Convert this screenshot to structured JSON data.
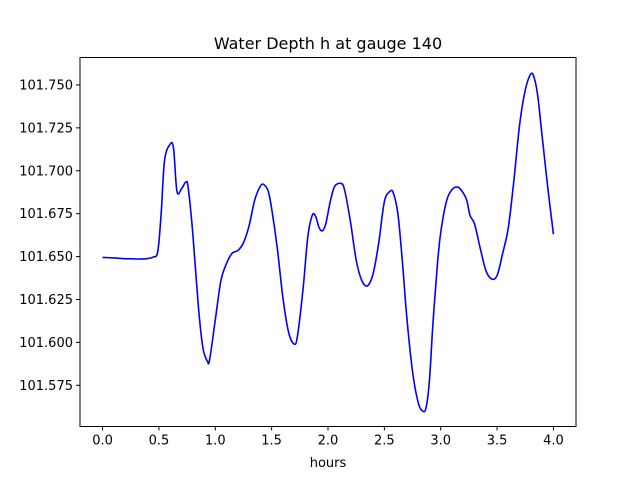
{
  "chart_data": {
    "type": "line",
    "title": "Water Depth h at gauge 140",
    "xlabel": "hours",
    "ylabel": "",
    "xlim": [
      -0.2,
      4.2
    ],
    "ylim": [
      101.551,
      101.766
    ],
    "xticks": [
      0.0,
      0.5,
      1.0,
      1.5,
      2.0,
      2.5,
      3.0,
      3.5,
      4.0
    ],
    "xtick_labels": [
      "0.0",
      "0.5",
      "1.0",
      "1.5",
      "2.0",
      "2.5",
      "3.0",
      "3.5",
      "4.0"
    ],
    "yticks": [
      101.575,
      101.6,
      101.625,
      101.65,
      101.675,
      101.7,
      101.725,
      101.75
    ],
    "ytick_labels": [
      "101.575",
      "101.600",
      "101.625",
      "101.650",
      "101.675",
      "101.700",
      "101.725",
      "101.750"
    ],
    "grid": false,
    "series": [
      {
        "color": "#0000ff",
        "x": [
          0.0,
          0.1,
          0.2,
          0.3,
          0.38,
          0.45,
          0.49,
          0.52,
          0.55,
          0.6,
          0.63,
          0.66,
          0.7,
          0.74,
          0.76,
          0.8,
          0.85,
          0.89,
          0.93,
          0.95,
          1.0,
          1.05,
          1.1,
          1.15,
          1.2,
          1.25,
          1.3,
          1.35,
          1.4,
          1.43,
          1.47,
          1.5,
          1.55,
          1.6,
          1.65,
          1.7,
          1.73,
          1.78,
          1.82,
          1.86,
          1.89,
          1.92,
          1.95,
          1.98,
          2.02,
          2.06,
          2.12,
          2.15,
          2.2,
          2.25,
          2.3,
          2.35,
          2.4,
          2.45,
          2.5,
          2.55,
          2.58,
          2.62,
          2.66,
          2.7,
          2.75,
          2.8,
          2.84,
          2.87,
          2.9,
          2.93,
          2.97,
          3.0,
          3.05,
          3.1,
          3.15,
          3.19,
          3.23,
          3.26,
          3.3,
          3.35,
          3.4,
          3.45,
          3.5,
          3.55,
          3.6,
          3.65,
          3.7,
          3.75,
          3.8,
          3.83,
          3.86,
          3.9,
          3.95,
          4.0
        ],
        "y": [
          101.6495,
          101.6492,
          101.6488,
          101.6486,
          101.6487,
          101.6497,
          101.653,
          101.675,
          101.706,
          101.7155,
          101.713,
          101.688,
          101.6895,
          101.6935,
          101.69,
          101.664,
          101.621,
          101.597,
          101.589,
          101.59,
          101.613,
          101.636,
          101.646,
          101.652,
          101.6535,
          101.658,
          101.668,
          101.683,
          101.691,
          101.692,
          101.688,
          101.678,
          101.655,
          101.626,
          101.606,
          101.599,
          101.604,
          101.632,
          101.661,
          101.674,
          101.6735,
          101.667,
          101.665,
          101.669,
          101.682,
          101.691,
          101.6925,
          101.688,
          101.67,
          101.648,
          101.636,
          101.633,
          101.64,
          101.658,
          101.682,
          101.688,
          101.687,
          101.675,
          101.647,
          101.614,
          101.583,
          101.565,
          101.56,
          101.562,
          101.578,
          101.61,
          101.645,
          101.664,
          101.682,
          101.689,
          101.6905,
          101.688,
          101.683,
          101.674,
          101.669,
          101.655,
          101.642,
          101.637,
          101.639,
          101.652,
          101.667,
          101.695,
          101.727,
          101.747,
          101.7565,
          101.754,
          101.744,
          101.72,
          101.69,
          101.663
        ]
      }
    ]
  }
}
